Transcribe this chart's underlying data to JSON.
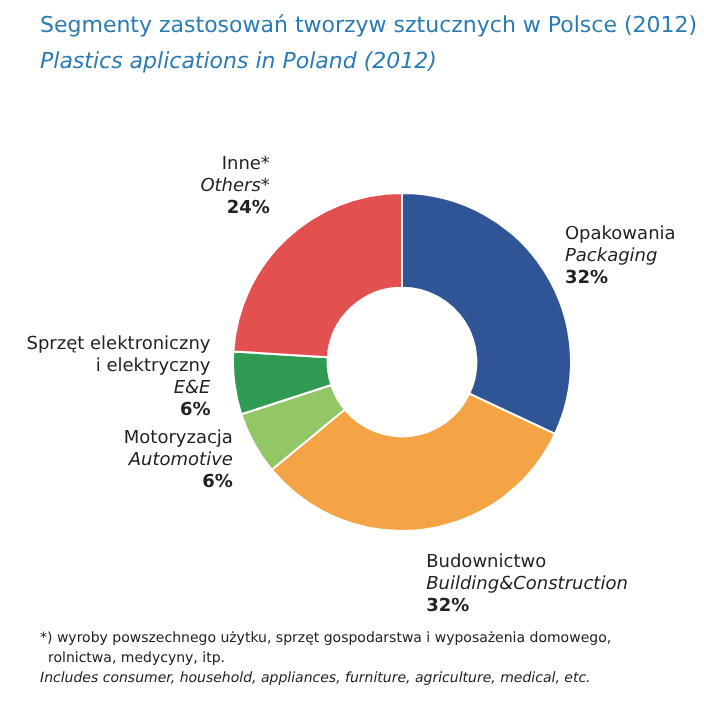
{
  "chart_data": {
    "type": "donut",
    "title": "Segmenty zastosowań tworzyw sztucznych w Polsce (2012)",
    "subtitle": "Plastics aplications in Poland (2012)",
    "categories": [
      "Opakowania\nPackaging",
      "Budownictwo\nBuilding&Construction",
      "Motoryzacja\nAutomotive",
      "Sprzęt elektroniczny\ni elektryczny\nE&E",
      "Inne*\nOthers*"
    ],
    "values": [
      32,
      32,
      6,
      6,
      24
    ],
    "value_labels": [
      "32%",
      "32%",
      "6%",
      "6%",
      "24%"
    ],
    "colors": [
      "#2f5596",
      "#f5a445",
      "#93c765",
      "#2e9a52",
      "#e2504f"
    ],
    "legend": false,
    "annotations": [
      "*) wyroby powszechnego użytku, sprzęt gospodarstwa i wyposażenia domowego, rolnictwa, medycyny, itp.",
      "Includes consumer, household, appliances, furniture, agriculture, medical, etc."
    ]
  }
}
